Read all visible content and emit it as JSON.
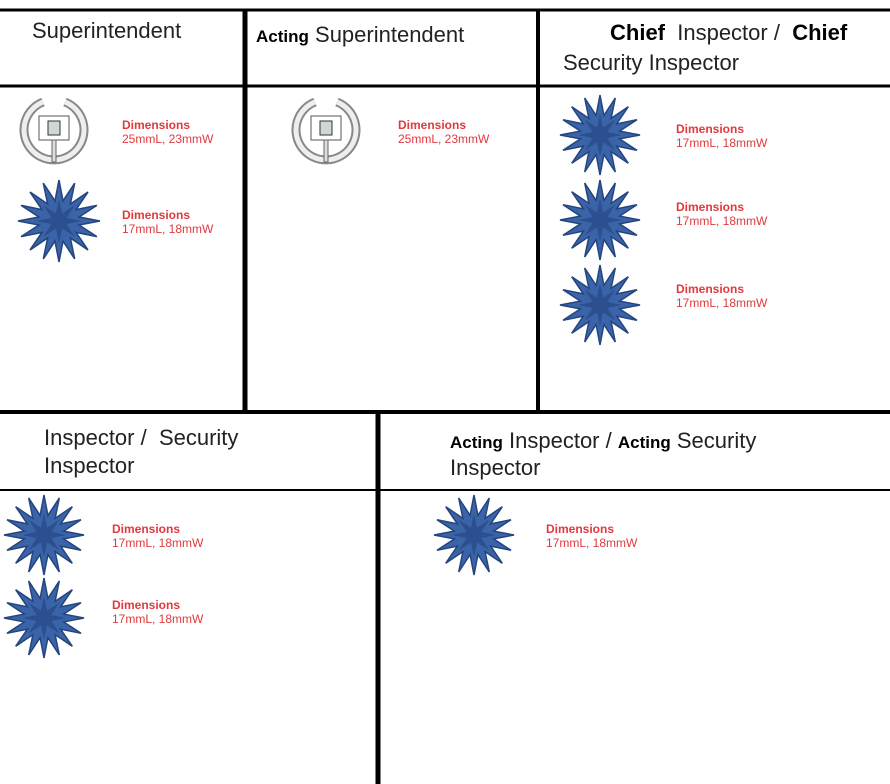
{
  "panels": [
    {
      "title": [
        "Superintendent"
      ],
      "items": [
        {
          "label": "Dimensions",
          "size": "25mmL, 23mmW"
        },
        {
          "label": "Dimensions",
          "size": "17mmL, 18mmW"
        }
      ]
    },
    {
      "title": [
        "Acting",
        "Superintendent"
      ],
      "items": [
        {
          "label": "Dimensions",
          "size": "25mmL, 23mmW"
        }
      ]
    },
    {
      "title": [
        "Chief",
        "Inspector /",
        "Chief",
        "Security Inspector"
      ],
      "items": [
        {
          "label": "Dimensions",
          "size": "17mmL, 18mmW"
        },
        {
          "label": "Dimensions",
          "size": "17mmL, 18mmW"
        },
        {
          "label": "Dimensions",
          "size": "17mmL, 18mmW"
        }
      ]
    },
    {
      "title": [
        "Inspector /  Security",
        "Inspector"
      ],
      "items": [
        {
          "label": "Dimensions",
          "size": "17mmL, 18mmW"
        },
        {
          "label": "Dimensions",
          "size": "17mmL, 18mmW"
        }
      ]
    },
    {
      "title": [
        "Acting",
        "Inspector /",
        "Acting",
        "Security",
        "Inspector"
      ],
      "items": [
        {
          "label": "Dimensions",
          "size": "17mmL, 18mmW"
        }
      ]
    }
  ]
}
